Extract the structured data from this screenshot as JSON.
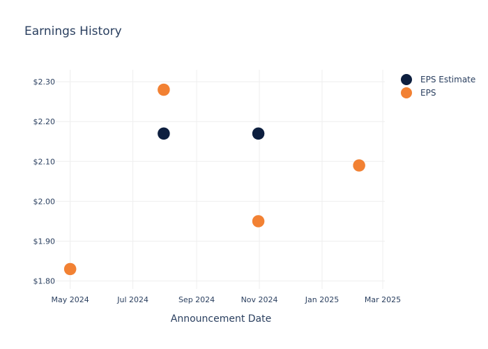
{
  "chart_data": {
    "type": "scatter",
    "title": "Earnings History",
    "xlabel": "Announcement Date",
    "ylabel": "",
    "x_ticks": [
      "2024-05-01",
      "2024-07-01",
      "2024-09-01",
      "2024-11-01",
      "2025-01-01",
      "2025-03-01"
    ],
    "x_tick_labels": [
      "May 2024",
      "Jul 2024",
      "Sep 2024",
      "Nov 2024",
      "Jan 2025",
      "Mar 2025"
    ],
    "xlim": [
      "2024-04-17",
      "2025-03-03"
    ],
    "y_ticks": [
      1.8,
      1.9,
      2.0,
      2.1,
      2.2,
      2.3
    ],
    "y_tick_labels": [
      "$1.80",
      "$1.90",
      "$2.00",
      "$2.10",
      "$2.20",
      "$2.30"
    ],
    "ylim": [
      1.78,
      2.33
    ],
    "grid": true,
    "legend_position": "top-right",
    "series": [
      {
        "name": "EPS Estimate",
        "color": "#0d1f3f",
        "points": [
          {
            "x": "2024-05-01",
            "y": 1.83
          },
          {
            "x": "2024-07-31",
            "y": 2.17
          },
          {
            "x": "2024-10-31",
            "y": 2.17
          },
          {
            "x": "2025-02-06",
            "y": 2.09
          }
        ]
      },
      {
        "name": "EPS",
        "color": "#f28133",
        "points": [
          {
            "x": "2024-05-01",
            "y": 1.83
          },
          {
            "x": "2024-07-31",
            "y": 2.28
          },
          {
            "x": "2024-10-31",
            "y": 1.95
          },
          {
            "x": "2025-02-06",
            "y": 2.09
          }
        ]
      }
    ]
  }
}
